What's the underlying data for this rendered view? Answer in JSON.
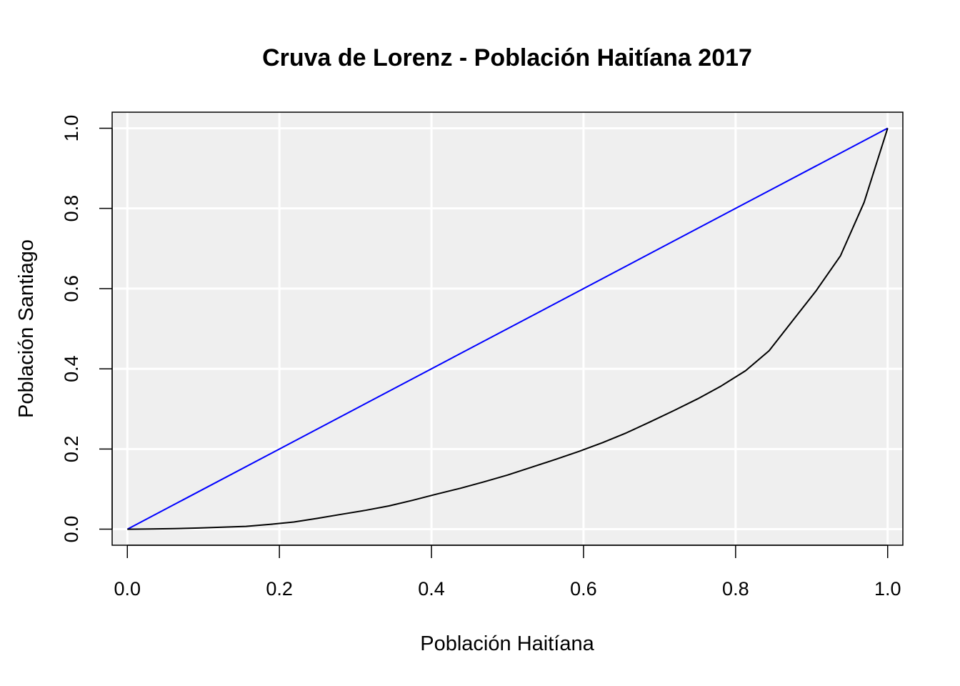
{
  "chart_data": {
    "type": "line",
    "title": "Cruva de Lorenz - Población Haitíana 2017",
    "xlabel": "Población Haitíana",
    "ylabel": "Población Santiago",
    "xlim": [
      -0.02,
      1.02
    ],
    "ylim": [
      -0.04,
      1.04
    ],
    "xticks": [
      "0.0",
      "0.2",
      "0.4",
      "0.6",
      "0.8",
      "1.0"
    ],
    "yticks": [
      "0.0",
      "0.2",
      "0.4",
      "0.6",
      "0.8",
      "1.0"
    ],
    "grid": true,
    "background": "#efefef",
    "series": [
      {
        "color": "#0000ff",
        "x": [
          0.0,
          1.0
        ],
        "y": [
          0.0,
          1.0
        ]
      },
      {
        "color": "#000000",
        "x": [
          0.0,
          0.031,
          0.062,
          0.094,
          0.125,
          0.156,
          0.188,
          0.219,
          0.25,
          0.281,
          0.313,
          0.344,
          0.375,
          0.406,
          0.438,
          0.469,
          0.5,
          0.531,
          0.563,
          0.594,
          0.625,
          0.656,
          0.688,
          0.719,
          0.75,
          0.781,
          0.813,
          0.844,
          0.875,
          0.906,
          0.938,
          0.969,
          1.0
        ],
        "y": [
          0.0,
          0.0005,
          0.0015,
          0.003,
          0.005,
          0.007,
          0.012,
          0.018,
          0.027,
          0.037,
          0.047,
          0.058,
          0.072,
          0.087,
          0.102,
          0.118,
          0.135,
          0.154,
          0.174,
          0.194,
          0.216,
          0.24,
          0.268,
          0.296,
          0.325,
          0.357,
          0.395,
          0.445,
          0.52,
          0.595,
          0.682,
          0.815,
          1.0
        ]
      }
    ]
  }
}
